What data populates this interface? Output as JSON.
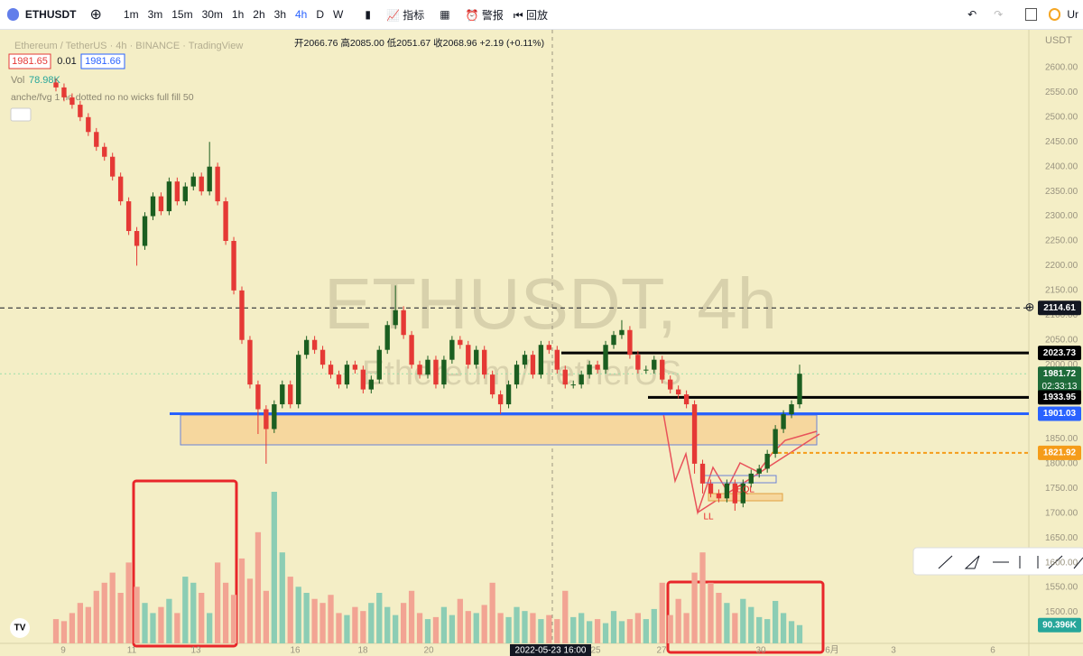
{
  "toolbar": {
    "symbol": "ETHUSDT",
    "intervals": [
      "1m",
      "3m",
      "15m",
      "30m",
      "1h",
      "2h",
      "3h",
      "4h",
      "D",
      "W"
    ],
    "active_interval": "4h",
    "indicators": "指标",
    "alerts": "警报",
    "replay": "回放",
    "user": "Ur"
  },
  "legend": {
    "title": "Ethereum / TetherUS · 4h · BINANCE · TradingView",
    "ohlc": "开2066.76 高2085.00 低2051.67 收2068.96 +2.19 (+0.11%)",
    "bid": "1981.65",
    "spread": "0.01",
    "ask": "1981.66",
    "vol_name": "Vol",
    "vol_value": "78.98K",
    "indicator": "anche/fvg 1 no dotted no no wicks full fill 50"
  },
  "watermark": {
    "symbol": "ETHUSDT, 4h",
    "name": "Ethereum / TetherUS"
  },
  "chart_data": {
    "type": "candlestick",
    "currency": "USDT",
    "ylim": [
      1490,
      2640
    ],
    "yticks": [
      {
        "value": 2600,
        "label": "2600.00"
      },
      {
        "value": 2550,
        "label": "2550.00"
      },
      {
        "value": 2500,
        "label": "2500.00"
      },
      {
        "value": 2450,
        "label": "2450.00"
      },
      {
        "value": 2400,
        "label": "2400.00"
      },
      {
        "value": 2350,
        "label": "2350.00"
      },
      {
        "value": 2300,
        "label": "2300.00"
      },
      {
        "value": 2250,
        "label": "2250.00"
      },
      {
        "value": 2200,
        "label": "2200.00"
      },
      {
        "value": 2150,
        "label": "2150.00"
      },
      {
        "value": 2100,
        "label": "2100.00"
      },
      {
        "value": 2050,
        "label": "2050.00"
      },
      {
        "value": 2000,
        "label": "2000.00"
      },
      {
        "value": 1950,
        "label": "1950.00"
      },
      {
        "value": 1900,
        "label": "1900.00"
      },
      {
        "value": 1850,
        "label": "1850.00"
      },
      {
        "value": 1800,
        "label": "1800.00"
      },
      {
        "value": 1750,
        "label": "1750.00"
      },
      {
        "value": 1700,
        "label": "1700.00"
      },
      {
        "value": 1650,
        "label": "1650.00"
      },
      {
        "value": 1600,
        "label": "1600.00"
      },
      {
        "value": 1550,
        "label": "1550.00"
      },
      {
        "value": 1500,
        "label": "1500.00"
      }
    ],
    "x_labels": [
      "9",
      "11",
      "13",
      "16",
      "18",
      "20",
      "2022-05-23  16:00",
      "25",
      "27",
      "30",
      "6月",
      "3",
      "6"
    ],
    "up_color": "#1b5e20",
    "down_color": "#e53935",
    "ohlc": [
      [
        2570,
        2578,
        2552,
        2560
      ],
      [
        2560,
        2568,
        2532,
        2540
      ],
      [
        2540,
        2548,
        2517,
        2525
      ],
      [
        2525,
        2533,
        2492,
        2500
      ],
      [
        2500,
        2508,
        2462,
        2470
      ],
      [
        2470,
        2478,
        2432,
        2440
      ],
      [
        2440,
        2448,
        2412,
        2420
      ],
      [
        2420,
        2428,
        2372,
        2380
      ],
      [
        2380,
        2388,
        2322,
        2330
      ],
      [
        2330,
        2338,
        2262,
        2270
      ],
      [
        2270,
        2278,
        2200,
        2240
      ],
      [
        2240,
        2308,
        2232,
        2300
      ],
      [
        2300,
        2348,
        2292,
        2340
      ],
      [
        2340,
        2348,
        2302,
        2310
      ],
      [
        2310,
        2378,
        2302,
        2370
      ],
      [
        2370,
        2378,
        2322,
        2330
      ],
      [
        2330,
        2368,
        2322,
        2360
      ],
      [
        2360,
        2388,
        2352,
        2380
      ],
      [
        2380,
        2388,
        2342,
        2350
      ],
      [
        2350,
        2450,
        2342,
        2400
      ],
      [
        2400,
        2408,
        2322,
        2330
      ],
      [
        2330,
        2338,
        2242,
        2250
      ],
      [
        2250,
        2258,
        2142,
        2150
      ],
      [
        2150,
        2158,
        2042,
        2050
      ],
      [
        2050,
        2058,
        1952,
        1960
      ],
      [
        1960,
        1968,
        1860,
        1910
      ],
      [
        1910,
        1918,
        1800,
        1870
      ],
      [
        1870,
        1928,
        1862,
        1920
      ],
      [
        1920,
        1968,
        1912,
        1960
      ],
      [
        1960,
        1968,
        1912,
        1920
      ],
      [
        1920,
        2028,
        1912,
        2020
      ],
      [
        2020,
        2058,
        2012,
        2050
      ],
      [
        2050,
        2058,
        2022,
        2030
      ],
      [
        2030,
        2038,
        1992,
        2000
      ],
      [
        2000,
        2008,
        1972,
        1980
      ],
      [
        1980,
        1988,
        1952,
        1960
      ],
      [
        1960,
        2008,
        1952,
        2000
      ],
      [
        2000,
        2008,
        1982,
        1990
      ],
      [
        1990,
        1998,
        1942,
        1950
      ],
      [
        1950,
        1978,
        1942,
        1970
      ],
      [
        1970,
        2038,
        1962,
        2030
      ],
      [
        2030,
        2088,
        2022,
        2080
      ],
      [
        2080,
        2160,
        2072,
        2110
      ],
      [
        2110,
        2118,
        2052,
        2060
      ],
      [
        2060,
        2068,
        1992,
        2000
      ],
      [
        2000,
        2008,
        1972,
        1980
      ],
      [
        1980,
        2018,
        1972,
        2010
      ],
      [
        2010,
        2018,
        1952,
        1960
      ],
      [
        1960,
        2018,
        1952,
        2010
      ],
      [
        2010,
        2058,
        2002,
        2050
      ],
      [
        2050,
        2058,
        2032,
        2040
      ],
      [
        2040,
        2048,
        1992,
        2000
      ],
      [
        2000,
        2038,
        1992,
        2030
      ],
      [
        2030,
        2038,
        1972,
        1980
      ],
      [
        1980,
        1988,
        1932,
        1940
      ],
      [
        1940,
        1948,
        1900,
        1920
      ],
      [
        1920,
        1968,
        1912,
        1960
      ],
      [
        1960,
        2008,
        1952,
        2000
      ],
      [
        2000,
        2028,
        1992,
        2020
      ],
      [
        2020,
        2028,
        1972,
        1980
      ],
      [
        1980,
        2048,
        1972,
        2040
      ],
      [
        2040,
        2048,
        2022,
        2030
      ],
      [
        2030,
        2038,
        1982,
        1990
      ],
      [
        1990,
        1998,
        1952,
        1960
      ],
      [
        1960,
        1968,
        1952,
        1960
      ],
      [
        1960,
        1988,
        1952,
        1980
      ],
      [
        1980,
        2008,
        1972,
        2000
      ],
      [
        2000,
        2008,
        1982,
        1990
      ],
      [
        1990,
        2048,
        1982,
        2040
      ],
      [
        2040,
        2068,
        2032,
        2060
      ],
      [
        2060,
        2090,
        2052,
        2070
      ],
      [
        2070,
        2078,
        2012,
        2020
      ],
      [
        2020,
        2028,
        1982,
        1990
      ],
      [
        1990,
        1998,
        1982,
        1990
      ],
      [
        1990,
        2018,
        1982,
        2010
      ],
      [
        2010,
        2018,
        1962,
        1970
      ],
      [
        1970,
        1978,
        1942,
        1950
      ],
      [
        1950,
        1958,
        1932,
        1940
      ],
      [
        1940,
        1948,
        1912,
        1920
      ],
      [
        1920,
        1928,
        1780,
        1800
      ],
      [
        1800,
        1808,
        1740,
        1760
      ],
      [
        1760,
        1768,
        1732,
        1740
      ],
      [
        1740,
        1748,
        1722,
        1730
      ],
      [
        1730,
        1768,
        1722,
        1760
      ],
      [
        1760,
        1768,
        1705,
        1720
      ],
      [
        1720,
        1768,
        1712,
        1760
      ],
      [
        1760,
        1788,
        1752,
        1780
      ],
      [
        1780,
        1798,
        1772,
        1790
      ],
      [
        1790,
        1828,
        1782,
        1820
      ],
      [
        1820,
        1878,
        1812,
        1870
      ],
      [
        1870,
        1908,
        1862,
        1900
      ],
      [
        1900,
        1928,
        1892,
        1920
      ],
      [
        1920,
        2000,
        1912,
        1981.72
      ]
    ],
    "volume": [
      120,
      110,
      150,
      200,
      180,
      260,
      300,
      350,
      250,
      400,
      280,
      200,
      150,
      180,
      220,
      150,
      330,
      300,
      250,
      150,
      400,
      300,
      240,
      420,
      320,
      550,
      260,
      750,
      450,
      330,
      280,
      250,
      220,
      200,
      240,
      150,
      140,
      180,
      160,
      200,
      250,
      180,
      140,
      200,
      260,
      150,
      120,
      130,
      180,
      140,
      220,
      160,
      150,
      190,
      300,
      150,
      130,
      180,
      160,
      150,
      120,
      140,
      120,
      260,
      130,
      150,
      110,
      120,
      100,
      160,
      110,
      120,
      150,
      120,
      170,
      300,
      140,
      220,
      150,
      350,
      450,
      300,
      250,
      200,
      150,
      220,
      180,
      130,
      120,
      210,
      150,
      110,
      90.396
    ],
    "vlim": [
      0,
      750
    ],
    "volume_label": {
      "value": 90.396,
      "label": "90.396K"
    },
    "levels": [
      {
        "value": 2114.61,
        "color": "#131722"
      },
      {
        "value": 2023.73,
        "color": "#000000"
      },
      {
        "value": 1981.72,
        "color": "#1e6b3a"
      },
      {
        "value": 1933.95,
        "color": "#000000"
      },
      {
        "value": 1901.03,
        "color": "#2962ff"
      },
      {
        "value": 1821.92,
        "color": "#f59c1a"
      }
    ],
    "countdown": "02:33:13",
    "annotations": [
      "LL",
      "EQL"
    ]
  }
}
